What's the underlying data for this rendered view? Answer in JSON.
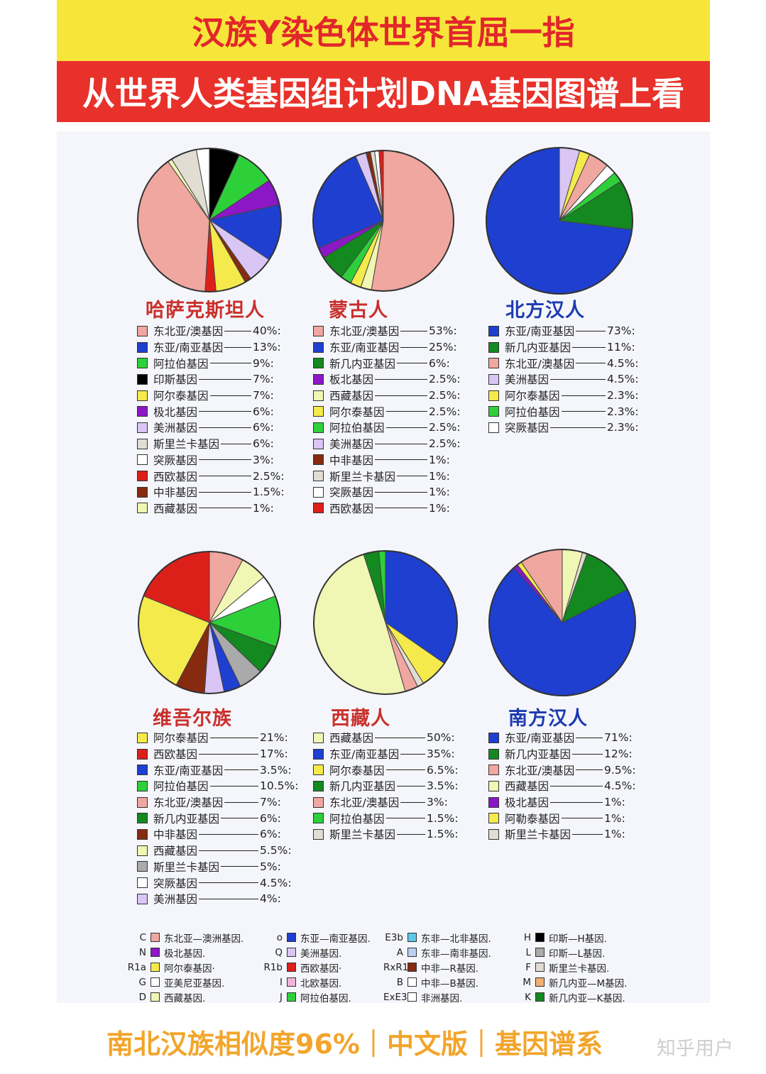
{
  "header": {
    "line1": "汉族Y染色体世界首屈一指",
    "line2": "从世界人类基因组计划DNA基因图谱上看"
  },
  "colors": {
    "NE_Aus": "#f0a7a0",
    "EA_SA": "#1e3fd0",
    "Arab": "#2ed03a",
    "India": "#000000",
    "Altai": "#f4ea4c",
    "Arctic": "#8b17c6",
    "America": "#d9c6f4",
    "SriLanka": "#e2ddd2",
    "Turk": "#ffffff",
    "WEur": "#dd1f1a",
    "CAfr": "#862b10",
    "Tibet": "#f0f6b3",
    "NewGuinea": "#13891f",
    "Grey": "#aaaaaa"
  },
  "chart_data": [
    {
      "type": "pie",
      "title": "哈萨克斯坦人",
      "title_color": "#c9302c",
      "slices": [
        {
          "label": "东北亚/澳基因",
          "value": 40,
          "text": "40%:",
          "color": "#f0a7a0"
        },
        {
          "label": "东亚/南亚基因",
          "value": 13,
          "text": "13%:",
          "color": "#1e3fd0"
        },
        {
          "label": "阿拉伯基因",
          "value": 9,
          "text": "9%:",
          "color": "#2ed03a"
        },
        {
          "label": "印斯基因",
          "value": 7,
          "text": "7%:",
          "color": "#000000"
        },
        {
          "label": "阿尔泰基因",
          "value": 7,
          "text": "7%:",
          "color": "#f4ea4c"
        },
        {
          "label": "极北基因",
          "value": 6,
          "text": "6%:",
          "color": "#8b17c6"
        },
        {
          "label": "美洲基因",
          "value": 6,
          "text": "6%:",
          "color": "#d9c6f4"
        },
        {
          "label": "斯里兰卡基因",
          "value": 6,
          "text": "6%:",
          "color": "#e2ddd2"
        },
        {
          "label": "突厥基因",
          "value": 3,
          "text": "3%:",
          "color": "#ffffff"
        },
        {
          "label": "西欧基因",
          "value": 2.5,
          "text": "2.5%:",
          "color": "#dd1f1a"
        },
        {
          "label": "中非基因",
          "value": 1.5,
          "text": "1.5%:",
          "color": "#862b10"
        },
        {
          "label": "西藏基因",
          "value": 1,
          "text": "1%:",
          "color": "#f0f6b3"
        }
      ],
      "pie_order": [
        "印斯基因",
        "阿拉伯基因",
        "极北基因",
        "东亚/南亚基因",
        "美洲基因",
        "中非基因",
        "阿尔泰基因",
        "西欧基因",
        "东北亚/澳基因",
        "西藏基因",
        "斯里兰卡基因",
        "突厥基因"
      ]
    },
    {
      "type": "pie",
      "title": "蒙古人",
      "title_color": "#c9302c",
      "slices": [
        {
          "label": "东北亚/澳基因",
          "value": 53,
          "text": "53%:",
          "color": "#f0a7a0"
        },
        {
          "label": "东亚/南亚基因",
          "value": 25,
          "text": "25%:",
          "color": "#1e3fd0"
        },
        {
          "label": "新几内亚基因",
          "value": 6,
          "text": "6%:",
          "color": "#13891f"
        },
        {
          "label": "板北基因",
          "value": 2.5,
          "text": "2.5%:",
          "color": "#8b17c6"
        },
        {
          "label": "西藏基因",
          "value": 2.5,
          "text": "2.5%:",
          "color": "#f0f6b3"
        },
        {
          "label": "阿尔泰基因",
          "value": 2.5,
          "text": "2.5%:",
          "color": "#f4ea4c"
        },
        {
          "label": "阿拉伯基因",
          "value": 2.5,
          "text": "2.5%:",
          "color": "#2ed03a"
        },
        {
          "label": "美洲基因",
          "value": 2.5,
          "text": "2.5%:",
          "color": "#d9c6f4"
        },
        {
          "label": "中非基因",
          "value": 1,
          "text": "1%:",
          "color": "#862b10"
        },
        {
          "label": "斯里兰卡基因",
          "value": 1,
          "text": "1%:",
          "color": "#e2ddd2"
        },
        {
          "label": "突厥基因",
          "value": 1,
          "text": "1%:",
          "color": "#ffffff"
        },
        {
          "label": "西欧基因",
          "value": 1,
          "text": "1%:",
          "color": "#dd1f1a"
        }
      ],
      "pie_order": [
        "东北亚/澳基因",
        "西藏基因",
        "阿尔泰基因",
        "阿拉伯基因",
        "新几内亚基因",
        "板北基因",
        "东亚/南亚基因",
        "美洲基因",
        "中非基因",
        "斯里兰卡基因",
        "突厥基因",
        "西欧基因"
      ]
    },
    {
      "type": "pie",
      "title": "北方汉人",
      "title_color": "#1d3ab0",
      "slices": [
        {
          "label": "东亚/南亚基因",
          "value": 73,
          "text": "73%:",
          "color": "#1e3fd0"
        },
        {
          "label": "新几内亚基因",
          "value": 11,
          "text": "11%:",
          "color": "#13891f"
        },
        {
          "label": "东北亚/澳基因",
          "value": 4.5,
          "text": "4.5%:",
          "color": "#f0a7a0"
        },
        {
          "label": "美洲基因",
          "value": 4.5,
          "text": "4.5%:",
          "color": "#d9c6f4"
        },
        {
          "label": "阿尔泰基因",
          "value": 2.3,
          "text": "2.3%:",
          "color": "#f4ea4c"
        },
        {
          "label": "阿拉伯基因",
          "value": 2.3,
          "text": "2.3%:",
          "color": "#2ed03a"
        },
        {
          "label": "突厥基因",
          "value": 2.3,
          "text": "2.3%:",
          "color": "#ffffff"
        }
      ],
      "pie_order": [
        "美洲基因",
        "阿尔泰基因",
        "东北亚/澳基因",
        "突厥基因",
        "阿拉伯基因",
        "新几内亚基因",
        "东亚/南亚基因"
      ]
    },
    {
      "type": "pie",
      "title": "维吾尔族",
      "title_color": "#c9302c",
      "slices": [
        {
          "label": "阿尔泰基因",
          "value": 21,
          "text": "21%:",
          "color": "#f4ea4c"
        },
        {
          "label": "西欧基因",
          "value": 17,
          "text": "17%:",
          "color": "#dd1f1a"
        },
        {
          "label": "东亚/南亚基因",
          "value": 3.5,
          "text": "3.5%:",
          "color": "#1e3fd0"
        },
        {
          "label": "阿拉伯基因",
          "value": 10.5,
          "text": "10.5%:",
          "color": "#2ed03a"
        },
        {
          "label": "东北亚/澳基因",
          "value": 7,
          "text": "7%:",
          "color": "#f0a7a0"
        },
        {
          "label": "新几内亚基因",
          "value": 6,
          "text": "6%:",
          "color": "#13891f"
        },
        {
          "label": "中非基因",
          "value": 6,
          "text": "6%:",
          "color": "#862b10"
        },
        {
          "label": "西藏基因",
          "value": 5.5,
          "text": "5.5%:",
          "color": "#f0f6b3"
        },
        {
          "label": "斯里兰卡基因",
          "value": 5,
          "text": "5%:",
          "color": "#aaaaaa"
        },
        {
          "label": "突厥基因",
          "value": 4.5,
          "text": "4.5%:",
          "color": "#ffffff"
        },
        {
          "label": "美洲基因",
          "value": 4,
          "text": "4%:",
          "color": "#d9c6f4"
        }
      ],
      "pie_order": [
        "东北亚/澳基因",
        "西藏基因",
        "突厥基因",
        "阿拉伯基因",
        "新几内亚基因",
        "斯里兰卡基因",
        "东亚/南亚基因",
        "美洲基因",
        "中非基因",
        "阿尔泰基因",
        "西欧基因"
      ]
    },
    {
      "type": "pie",
      "title": "西藏人",
      "title_color": "#c9302c",
      "slices": [
        {
          "label": "西藏基因",
          "value": 50,
          "text": "50%:",
          "color": "#f0f6b3"
        },
        {
          "label": "东亚/南亚基因",
          "value": 35,
          "text": "35%:",
          "color": "#1e3fd0"
        },
        {
          "label": "阿尔泰基因",
          "value": 6.5,
          "text": "6.5%:",
          "color": "#f4ea4c"
        },
        {
          "label": "新几内亚基因",
          "value": 3.5,
          "text": "3.5%:",
          "color": "#13891f"
        },
        {
          "label": "东北亚/澳基因",
          "value": 3,
          "text": "3%:",
          "color": "#f0a7a0"
        },
        {
          "label": "阿拉伯基因",
          "value": 1.5,
          "text": "1.5%:",
          "color": "#2ed03a"
        },
        {
          "label": "斯里兰卡基因",
          "value": 1.5,
          "text": "1.5%:",
          "color": "#e2ddd2"
        }
      ],
      "pie_order": [
        "东亚/南亚基因",
        "阿尔泰基因",
        "斯里兰卡基因",
        "东北亚/澳基因",
        "西藏基因",
        "新几内亚基因",
        "阿拉伯基因"
      ]
    },
    {
      "type": "pie",
      "title": "南方汉人",
      "title_color": "#1d3ab0",
      "slices": [
        {
          "label": "东亚/南亚基因",
          "value": 71,
          "text": "71%:",
          "color": "#1e3fd0"
        },
        {
          "label": "新几内亚基因",
          "value": 12,
          "text": "12%:",
          "color": "#13891f"
        },
        {
          "label": "东北亚/澳基因",
          "value": 9.5,
          "text": "9.5%:",
          "color": "#f0a7a0"
        },
        {
          "label": "西藏基因",
          "value": 4.5,
          "text": "4.5%:",
          "color": "#f0f6b3"
        },
        {
          "label": "极北基因",
          "value": 1,
          "text": "1%:",
          "color": "#8b17c6"
        },
        {
          "label": "阿勒泰基因",
          "value": 1,
          "text": "1%:",
          "color": "#f4ea4c"
        },
        {
          "label": "斯里兰卡基因",
          "value": 1,
          "text": "1%:",
          "color": "#e2ddd2"
        }
      ],
      "pie_order": [
        "西藏基因",
        "斯里兰卡基因",
        "新几内亚基因",
        "东亚/南亚基因",
        "极北基因",
        "阿勒泰基因",
        "东北亚/澳基因"
      ]
    }
  ],
  "key": [
    [
      {
        "code": "C",
        "label": "东北亚—澳洲基因.",
        "color": "#f0a7a0"
      },
      {
        "code": "N",
        "label": "极北基因.",
        "color": "#8b17c6"
      },
      {
        "code": "R1a",
        "label": "阿尔泰基因·",
        "color": "#f4ea4c"
      },
      {
        "code": "G",
        "label": "亚美尼亚基因.",
        "color": "#ffffff"
      },
      {
        "code": "D",
        "label": "西藏基因.",
        "color": "#f0f6b3"
      }
    ],
    [
      {
        "code": "o",
        "label": "东亚—南亚基因.",
        "color": "#1e3fd0"
      },
      {
        "code": "Q",
        "label": "美洲基因.",
        "color": "#d9c6f4"
      },
      {
        "code": "R1b",
        "label": "西欧基因·",
        "color": "#dd1f1a"
      },
      {
        "code": "I",
        "label": "北欧基因.",
        "color": "#f3b3d9"
      },
      {
        "code": "J",
        "label": "阿拉伯基因.",
        "color": "#2ed03a"
      }
    ],
    [
      {
        "code": "E3b",
        "label": "东非—北非基因.",
        "color": "#5cc8e8"
      },
      {
        "code": "A",
        "label": "东非—南非基因.",
        "color": "#b9d0f0"
      },
      {
        "code": "RxR1",
        "label": "中非—R基因.",
        "color": "#862b10"
      },
      {
        "code": "B",
        "label": "中非—B基因.",
        "color": "#ffffff"
      },
      {
        "code": "ExE3b",
        "label": "非洲基因.",
        "color": "#ffffff"
      }
    ],
    [
      {
        "code": "H",
        "label": "印斯—H基因.",
        "color": "#000000"
      },
      {
        "code": "L",
        "label": "印斯—L基因.",
        "color": "#aaaaaa"
      },
      {
        "code": "F",
        "label": "斯里兰卡基因.",
        "color": "#e2ddd2"
      },
      {
        "code": "M",
        "label": "新几内亚—M基因.",
        "color": "#f0b070"
      },
      {
        "code": "K",
        "label": "新几内亚—K基因.",
        "color": "#13891f"
      }
    ]
  ],
  "footer": {
    "text": "南北汉族相似度96%｜中文版｜基因谱系",
    "watermark": "知乎用户"
  }
}
